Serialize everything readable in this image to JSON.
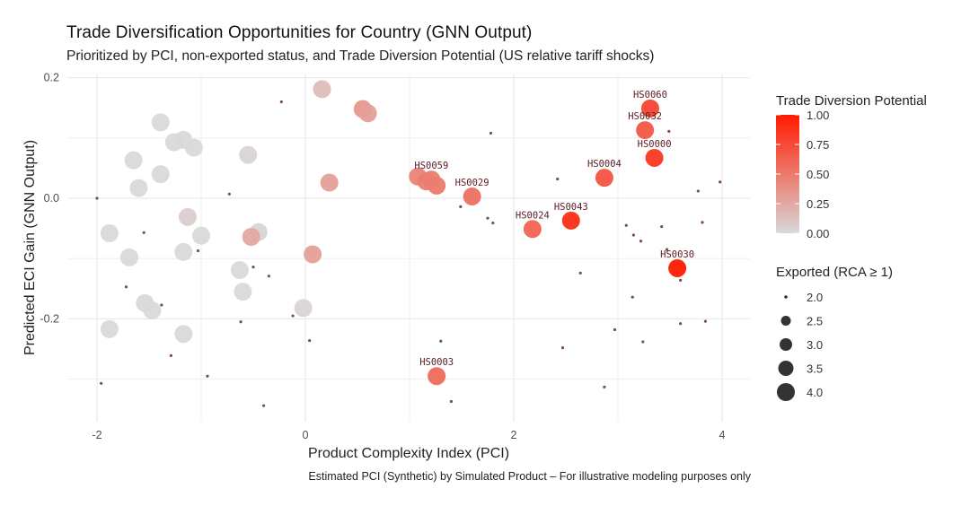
{
  "chart_data": {
    "type": "scatter",
    "title": "Trade Diversification Opportunities for Country (GNN Output)",
    "subtitle": "Prioritized by PCI, non-exported status, and Trade Diversion Potential (US relative tariff shocks)",
    "xlabel": "Product Complexity Index (PCI)",
    "ylabel": "Predicted ECI Gain (GNN Output)",
    "caption": "Estimated PCI (Synthetic) by Simulated Product – For illustrative modeling purposes only",
    "xlim": [
      -2.3,
      4.3
    ],
    "ylim": [
      -0.37,
      0.205
    ],
    "x_ticks": [
      -2,
      0,
      2,
      4
    ],
    "x_tick_labels": [
      "-2",
      "0",
      "2",
      "4"
    ],
    "y_ticks": [
      0.2,
      0.0,
      -0.2
    ],
    "y_tick_labels": [
      "0.2",
      "0.0",
      "-0.2"
    ],
    "grid": true,
    "color_legend": {
      "title": "Trade Diversion Potential",
      "low_color": "#d9d9d9",
      "high_color": "#ff1a00",
      "range": [
        0,
        1
      ],
      "ticks": [
        1.0,
        0.75,
        0.5,
        0.25,
        0.0
      ],
      "tick_labels": [
        "1.00",
        "0.75",
        "0.50",
        "0.25",
        "0.00"
      ],
      "placement": "right"
    },
    "size_legend": {
      "title": "Exported (RCA ≥ 1)",
      "values": [
        2.0,
        2.5,
        3.0,
        3.5,
        4.0
      ],
      "labels": [
        "2.0",
        "2.5",
        "3.0",
        "3.5",
        "4.0"
      ],
      "placement": "right"
    },
    "labeled_points": [
      {
        "label": "HS0060",
        "x": 3.31,
        "y": 0.149,
        "tdp": 0.78
      },
      {
        "label": "HS0032",
        "x": 3.26,
        "y": 0.113,
        "tdp": 0.68
      },
      {
        "label": "HS0000",
        "x": 3.35,
        "y": 0.067,
        "tdp": 0.85
      },
      {
        "label": "HS0004",
        "x": 2.87,
        "y": 0.034,
        "tdp": 0.7
      },
      {
        "label": "HS0059",
        "x": 1.21,
        "y": 0.031,
        "tdp": 0.48
      },
      {
        "label": "HS0029",
        "x": 1.6,
        "y": 0.003,
        "tdp": 0.55
      },
      {
        "label": "HS0024",
        "x": 2.18,
        "y": -0.051,
        "tdp": 0.62
      },
      {
        "label": "HS0043",
        "x": 2.55,
        "y": -0.037,
        "tdp": 0.9
      },
      {
        "label": "HS0030",
        "x": 3.57,
        "y": -0.116,
        "tdp": 1.0
      },
      {
        "label": "HS0003",
        "x": 1.26,
        "y": -0.295,
        "tdp": 0.58
      }
    ],
    "non_exported_points": [
      {
        "x": -1.39,
        "y": 0.126,
        "tdp": 0.0
      },
      {
        "x": -1.26,
        "y": 0.093,
        "tdp": 0.0
      },
      {
        "x": -1.17,
        "y": 0.097,
        "tdp": 0.0
      },
      {
        "x": -1.07,
        "y": 0.084,
        "tdp": 0.0
      },
      {
        "x": -1.65,
        "y": 0.063,
        "tdp": 0.0
      },
      {
        "x": -1.39,
        "y": 0.04,
        "tdp": 0.0
      },
      {
        "x": -1.6,
        "y": 0.017,
        "tdp": 0.0
      },
      {
        "x": -0.55,
        "y": 0.072,
        "tdp": 0.02
      },
      {
        "x": -1.88,
        "y": -0.058,
        "tdp": 0.0
      },
      {
        "x": -1.13,
        "y": -0.031,
        "tdp": 0.05
      },
      {
        "x": -1.0,
        "y": -0.062,
        "tdp": 0.0
      },
      {
        "x": -1.69,
        "y": -0.098,
        "tdp": 0.0
      },
      {
        "x": -1.17,
        "y": -0.089,
        "tdp": 0.0
      },
      {
        "x": -0.45,
        "y": -0.056,
        "tdp": 0.02
      },
      {
        "x": -0.52,
        "y": -0.064,
        "tdp": 0.25
      },
      {
        "x": -0.63,
        "y": -0.119,
        "tdp": 0.0
      },
      {
        "x": -0.6,
        "y": -0.155,
        "tdp": 0.0
      },
      {
        "x": -1.54,
        "y": -0.174,
        "tdp": 0.0
      },
      {
        "x": -1.47,
        "y": -0.186,
        "tdp": 0.0
      },
      {
        "x": -1.88,
        "y": -0.217,
        "tdp": 0.0
      },
      {
        "x": -1.17,
        "y": -0.225,
        "tdp": 0.0
      },
      {
        "x": -0.02,
        "y": -0.182,
        "tdp": 0.02
      },
      {
        "x": 0.07,
        "y": -0.093,
        "tdp": 0.3
      },
      {
        "x": 0.16,
        "y": 0.181,
        "tdp": 0.15
      },
      {
        "x": 0.55,
        "y": 0.148,
        "tdp": 0.35
      },
      {
        "x": 0.6,
        "y": 0.141,
        "tdp": 0.3
      },
      {
        "x": 0.23,
        "y": 0.026,
        "tdp": 0.3
      },
      {
        "x": 1.08,
        "y": 0.036,
        "tdp": 0.45
      },
      {
        "x": 1.16,
        "y": 0.028,
        "tdp": 0.48
      },
      {
        "x": 1.26,
        "y": 0.021,
        "tdp": 0.5
      }
    ],
    "exported_points": [
      {
        "x": -2.0,
        "y": 0.0
      },
      {
        "x": -0.23,
        "y": 0.16
      },
      {
        "x": -0.73,
        "y": 0.007
      },
      {
        "x": -1.55,
        "y": -0.057
      },
      {
        "x": -1.03,
        "y": -0.087
      },
      {
        "x": -0.5,
        "y": -0.114
      },
      {
        "x": -1.72,
        "y": -0.147
      },
      {
        "x": -1.38,
        "y": -0.177
      },
      {
        "x": -0.94,
        "y": -0.295
      },
      {
        "x": -1.96,
        "y": -0.307
      },
      {
        "x": -0.4,
        "y": -0.344
      },
      {
        "x": -0.62,
        "y": -0.205
      },
      {
        "x": -0.35,
        "y": -0.129
      },
      {
        "x": -0.12,
        "y": -0.195
      },
      {
        "x": -1.29,
        "y": -0.261
      },
      {
        "x": 0.04,
        "y": -0.236
      },
      {
        "x": 1.49,
        "y": -0.014
      },
      {
        "x": 1.75,
        "y": -0.033
      },
      {
        "x": 1.8,
        "y": -0.041
      },
      {
        "x": 1.78,
        "y": 0.108
      },
      {
        "x": 2.42,
        "y": 0.032
      },
      {
        "x": 2.64,
        "y": -0.124
      },
      {
        "x": 2.47,
        "y": -0.248
      },
      {
        "x": 2.87,
        "y": -0.313
      },
      {
        "x": 1.3,
        "y": -0.237
      },
      {
        "x": 1.4,
        "y": -0.337
      },
      {
        "x": 3.08,
        "y": -0.045
      },
      {
        "x": 3.15,
        "y": -0.061
      },
      {
        "x": 3.22,
        "y": -0.071
      },
      {
        "x": 3.42,
        "y": -0.047
      },
      {
        "x": 3.49,
        "y": 0.111
      },
      {
        "x": 3.77,
        "y": 0.012
      },
      {
        "x": 3.98,
        "y": 0.027
      },
      {
        "x": 3.81,
        "y": -0.04
      },
      {
        "x": 3.47,
        "y": -0.085
      },
      {
        "x": 3.6,
        "y": -0.136
      },
      {
        "x": 3.14,
        "y": -0.164
      },
      {
        "x": 2.97,
        "y": -0.218
      },
      {
        "x": 3.24,
        "y": -0.238
      },
      {
        "x": 3.6,
        "y": -0.208
      },
      {
        "x": 3.84,
        "y": -0.204
      }
    ]
  }
}
